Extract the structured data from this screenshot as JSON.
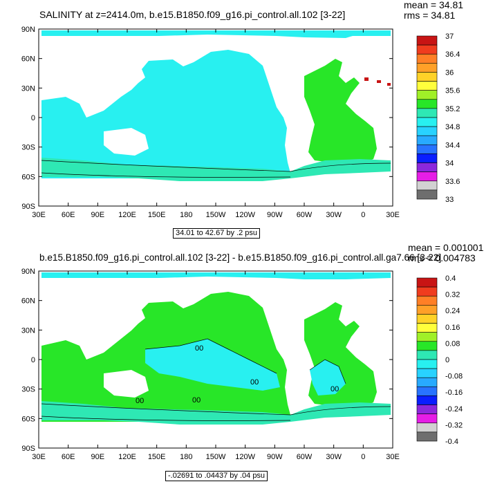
{
  "panels": [
    {
      "title": "SALINITY at z=2414.0m, b.e15.B1850.f09_g16.pi_control.all.102 [3-22]",
      "mean_text": "mean = 34.81",
      "rms_text": "rms = 34.81",
      "info_text": "34.01 to 42.67 by .2 psu",
      "contour_label": "",
      "land_color": "#ffffff",
      "colorbar": {
        "labels": [
          "37",
          "36.4",
          "36",
          "35.6",
          "35.2",
          "34.8",
          "34.4",
          "34",
          "33.6",
          "33"
        ],
        "colors": [
          "#c81414",
          "#f03c1e",
          "#ff7f26",
          "#ffa028",
          "#ffd228",
          "#ffff3c",
          "#a0f028",
          "#28e628",
          "#2ee8b4",
          "#28f0f0",
          "#28d2ff",
          "#28aaff",
          "#2873ff",
          "#0a1eff",
          "#8c28dc",
          "#e61ee6",
          "#d2d2d2",
          "#6e6e6e"
        ]
      }
    },
    {
      "title": "b.e15.B1850.f09_g16.pi_control.all.102 [3-22] - b.e15.B1850.f09_g16.pi_control.all.ga7.66 [3-22]",
      "mean_text": "mean = 0.001001",
      "rms_text": "rms = 0.004783",
      "info_text": "-.02691 to .04437 by .04 psu",
      "contour_label": "00",
      "land_color": "#ffffff",
      "colorbar": {
        "labels": [
          "0.4",
          "0.32",
          "0.24",
          "0.16",
          "0.08",
          "0",
          "-0.08",
          "-0.16",
          "-0.24",
          "-0.32",
          "-0.4"
        ],
        "colors": [
          "#c81414",
          "#f03c1e",
          "#ff7f26",
          "#ffa028",
          "#ffd228",
          "#ffff3c",
          "#a0f028",
          "#28e628",
          "#2ee8b4",
          "#28f0f0",
          "#28d2ff",
          "#28aaff",
          "#2873ff",
          "#0a1eff",
          "#8c28dc",
          "#e61ee6",
          "#d2d2d2",
          "#6e6e6e"
        ]
      }
    }
  ],
  "lat_labels": [
    "90N",
    "60N",
    "30N",
    "0",
    "30S",
    "60S",
    "90S"
  ],
  "lon_labels": [
    "30E",
    "60E",
    "90E",
    "120E",
    "150E",
    "180",
    "150W",
    "120W",
    "90W",
    "60W",
    "30W",
    "0",
    "30E"
  ],
  "colors": {
    "ocean_top": "#28f0f0",
    "atlantic_top": "#28e628",
    "southern_top": "#2ee8b4",
    "ocean_diff_main": "#28e628",
    "ocean_diff_cyan": "#28f0f0",
    "ocean_diff_teal": "#2ee8b4",
    "red_spot": "#c81414"
  },
  "chart_data": [
    {
      "type": "heatmap",
      "title": "SALINITY at z=2414.0m, b.e15.B1850.f09_g16.pi_control.all.102 [3-22]",
      "x_tick_labels": [
        "30E",
        "60E",
        "90E",
        "120E",
        "150E",
        "180",
        "150W",
        "120W",
        "90W",
        "60W",
        "30W",
        "0",
        "30E"
      ],
      "y_tick_labels": [
        "90N",
        "60N",
        "30N",
        "0",
        "30S",
        "60S",
        "90S"
      ],
      "colorbar_levels": [
        33,
        33.6,
        34,
        34.4,
        34.8,
        35.2,
        35.6,
        36,
        36.4,
        37
      ],
      "units": "psu",
      "range": [
        34.01,
        42.67
      ],
      "interval": 0.2,
      "mean": 34.81,
      "rms": 34.81
    },
    {
      "type": "heatmap",
      "title": "b.e15.B1850.f09_g16.pi_control.all.102 [3-22] - b.e15.B1850.f09_g16.pi_control.all.ga7.66 [3-22]",
      "x_tick_labels": [
        "30E",
        "60E",
        "90E",
        "120E",
        "150E",
        "180",
        "150W",
        "120W",
        "90W",
        "60W",
        "30W",
        "0",
        "30E"
      ],
      "y_tick_labels": [
        "90N",
        "60N",
        "30N",
        "0",
        "30S",
        "60S",
        "90S"
      ],
      "colorbar_levels": [
        -0.4,
        -0.32,
        -0.24,
        -0.16,
        -0.08,
        0,
        0.08,
        0.16,
        0.24,
        0.32,
        0.4
      ],
      "units": "psu",
      "range": [
        -0.02691,
        0.04437
      ],
      "interval": 0.04,
      "mean": 0.001001,
      "rms": 0.004783
    }
  ]
}
